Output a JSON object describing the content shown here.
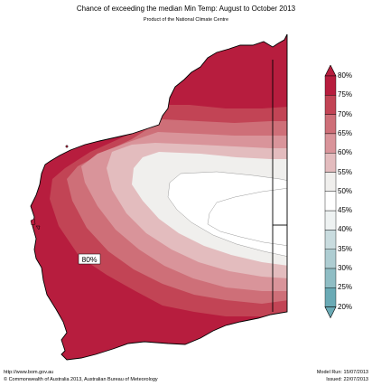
{
  "title": "Chance of exceeding the median Min Temp: August to October 2013",
  "subtitle": "Product of the National Climate Centre",
  "map": {
    "region_label": "80%",
    "bands": [
      {
        "name": "band-80",
        "color": "#b71d3e"
      },
      {
        "name": "band-75",
        "color": "#c24455"
      },
      {
        "name": "band-70",
        "color": "#ce6f78"
      },
      {
        "name": "band-65",
        "color": "#d9949a"
      },
      {
        "name": "band-60",
        "color": "#e3bcbe"
      },
      {
        "name": "band-55",
        "color": "#f0efed"
      },
      {
        "name": "band-50",
        "color": "#ffffff"
      }
    ]
  },
  "legend": {
    "labels": [
      "80%",
      "75%",
      "70%",
      "65%",
      "60%",
      "55%",
      "50%",
      "45%",
      "40%",
      "35%",
      "30%",
      "25%",
      "20%"
    ],
    "colors": [
      "#b71d3e",
      "#c24455",
      "#ce6f78",
      "#d9949a",
      "#e3bcbe",
      "#f0efed",
      "#ffffff",
      "#eef2f2",
      "#c9dcdf",
      "#aecdd2",
      "#8fbdc4",
      "#6aaab5",
      "#6aaab5"
    ]
  },
  "footer": {
    "url": "http://www.bom.gov.au",
    "copyright": "©  Commonwealth of Australia 2013, Australian Bureau of Meteorology",
    "model_run": "Model Run: 15/07/2013",
    "issued": "Issued: 22/07/2013"
  }
}
